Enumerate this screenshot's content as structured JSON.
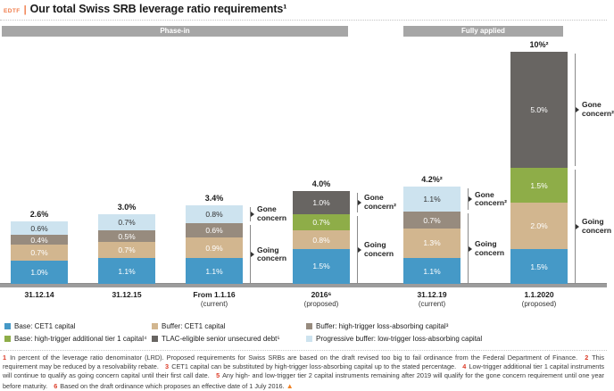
{
  "header": {
    "tag": "EDTF",
    "divider": "|",
    "title": "Our total Swiss SRB leverage ratio requirements¹"
  },
  "sections": [
    {
      "label": "Phase-in"
    },
    {
      "label": "Fully applied"
    }
  ],
  "colors": {
    "base_cet1": {
      "bg": "#4599c7",
      "tx": "#ffffff"
    },
    "buffer_cet1": {
      "bg": "#d2b68f",
      "tx": "#ffffff"
    },
    "buffer_ht": {
      "bg": "#978b7e",
      "tx": "#ffffff"
    },
    "base_at1": {
      "bg": "#8ead48",
      "tx": "#ffffff"
    },
    "tlac": {
      "bg": "#686562",
      "tx": "#ffffff"
    },
    "prog_buffer": {
      "bg": "#cde3ef",
      "tx": "#333333"
    }
  },
  "chart_data": {
    "type": "bar",
    "stacked": true,
    "unit": "percent of leverage ratio denominator (LRD)",
    "ylim": [
      0,
      10
    ],
    "bars": [
      {
        "x": "31.12.14",
        "sub": "",
        "total": "2.6%",
        "segments": [
          {
            "k": "base_cet1",
            "v": 1.0,
            "label": "1.0%"
          },
          {
            "k": "buffer_cet1",
            "v": 0.7,
            "label": "0.7%"
          },
          {
            "k": "buffer_ht",
            "v": 0.4,
            "label": "0.4%"
          },
          {
            "k": "prog_buffer",
            "v": 0.6,
            "label": "0.6%"
          }
        ]
      },
      {
        "x": "31.12.15",
        "sub": "",
        "total": "3.0%",
        "segments": [
          {
            "k": "base_cet1",
            "v": 1.1,
            "label": "1.1%"
          },
          {
            "k": "buffer_cet1",
            "v": 0.7,
            "label": "0.7%"
          },
          {
            "k": "buffer_ht",
            "v": 0.5,
            "label": "0.5%"
          },
          {
            "k": "prog_buffer",
            "v": 0.7,
            "label": "0.7%"
          }
        ]
      },
      {
        "x": "From 1.1.16",
        "sub": "(current)",
        "total": "3.4%",
        "segments": [
          {
            "k": "base_cet1",
            "v": 1.1,
            "label": "1.1%"
          },
          {
            "k": "buffer_cet1",
            "v": 0.9,
            "label": "0.9%"
          },
          {
            "k": "buffer_ht",
            "v": 0.6,
            "label": "0.6%"
          },
          {
            "k": "prog_buffer",
            "v": 0.8,
            "label": "0.8%"
          }
        ],
        "bracket": {
          "gone": "Gone concern",
          "going": "Going concern"
        }
      },
      {
        "x": "2016⁶",
        "sub": "(proposed)",
        "total": "4.0%",
        "segments": [
          {
            "k": "base_cet1",
            "v": 1.5,
            "label": "1.5%"
          },
          {
            "k": "buffer_cet1",
            "v": 0.8,
            "label": "0.8%"
          },
          {
            "k": "base_at1",
            "v": 0.7,
            "label": "0.7%"
          },
          {
            "k": "tlac",
            "v": 1.0,
            "label": "1.0%"
          }
        ],
        "bracket": {
          "gone": "Gone concern²",
          "going": "Going concern"
        }
      },
      {
        "x": "31.12.19",
        "sub": "(current)",
        "total": "4.2%²",
        "segments": [
          {
            "k": "base_cet1",
            "v": 1.1,
            "label": "1.1%"
          },
          {
            "k": "buffer_cet1",
            "v": 1.3,
            "label": "1.3%"
          },
          {
            "k": "buffer_ht",
            "v": 0.7,
            "label": "0.7%"
          },
          {
            "k": "prog_buffer",
            "v": 1.1,
            "label": "1.1%"
          }
        ],
        "bracket": {
          "gone": "Gone concern²",
          "going": "Going concern"
        }
      },
      {
        "x": "1.1.2020",
        "sub": "(proposed)",
        "total": "10%²",
        "segments": [
          {
            "k": "base_cet1",
            "v": 1.5,
            "label": "1.5%"
          },
          {
            "k": "buffer_cet1",
            "v": 2.0,
            "label": "2.0%"
          },
          {
            "k": "base_at1",
            "v": 1.5,
            "label": "1.5%"
          },
          {
            "k": "tlac",
            "v": 5.0,
            "label": "5.0%"
          }
        ],
        "bracket": {
          "gone": "Gone concern²",
          "going": "Going concern"
        }
      }
    ]
  },
  "legend": {
    "items": [
      {
        "k": "base_cet1",
        "label": "Base: CET1 capital"
      },
      {
        "k": "buffer_cet1",
        "label": "Buffer: CET1 capital"
      },
      {
        "k": "buffer_ht",
        "label": "Buffer: high-trigger loss-absorbing capital³"
      },
      {
        "k": "base_at1",
        "label": "Base: high-trigger additional tier 1 capital⁴"
      },
      {
        "k": "tlac",
        "label": "TLAC-eligible senior unsecured debt⁵"
      },
      {
        "k": "prog_buffer",
        "label": "Progressive buffer: low-trigger loss-absorbing capital"
      }
    ]
  },
  "footnotes": {
    "items": [
      {
        "m": "1",
        "t": "In percent of the leverage ratio denominator (LRD). Proposed requirements for Swiss SRBs are based on the draft revised too big to fail ordinance from the Federal Department of Finance."
      },
      {
        "m": "2",
        "t": "This requirement may be reduced by a resolvability rebate."
      },
      {
        "m": "3",
        "t": "CET1 capital can be substituted by high-trigger loss-absorbing capital up to the stated percentage."
      },
      {
        "m": "4",
        "t": "Low-trigger additional tier 1 capital instruments will continue to qualify as going concern capital until their first call date."
      },
      {
        "m": "5",
        "t": "Any high- and low-trigger tier 2 capital instruments remaining after 2019 will qualify for the gone concern requirement until one year before maturity."
      },
      {
        "m": "6",
        "t": "Based on the draft ordinance which proposes an effective date of 1 July 2016."
      }
    ],
    "warning": "▲"
  }
}
